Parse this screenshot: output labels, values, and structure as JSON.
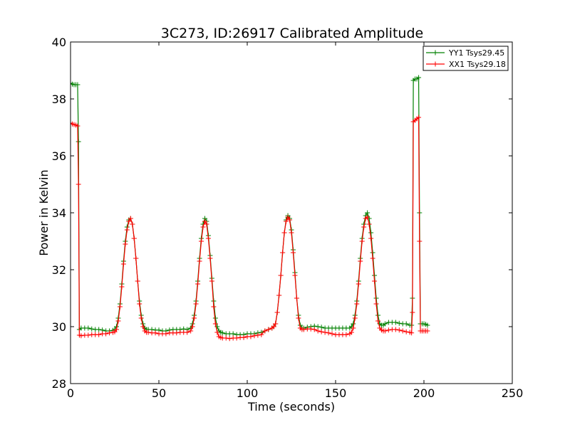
{
  "chart_data": {
    "type": "line",
    "title": "3C273, ID:26917 Calibrated Amplitude",
    "xlabel": "Time (seconds)",
    "ylabel": "Power in Kelvin",
    "xlim": [
      0,
      250
    ],
    "ylim": [
      28,
      40
    ],
    "x_ticks": [
      "0",
      "50",
      "100",
      "150",
      "200",
      "250"
    ],
    "y_ticks": [
      "28",
      "30",
      "32",
      "34",
      "36",
      "38",
      "40"
    ],
    "grid": false,
    "legend_position": "top-right",
    "marker": "+",
    "series": [
      {
        "name": "YY1 Tsys29.45",
        "color": "#008000",
        "x": [
          0,
          1,
          2,
          3,
          4,
          4.5,
          5,
          6,
          8,
          10,
          12,
          14,
          16,
          18,
          20,
          22,
          24,
          25,
          26,
          27,
          28,
          29,
          30,
          31,
          32,
          33,
          34,
          35,
          36,
          37,
          38,
          39,
          40,
          41,
          42,
          43,
          44,
          46,
          48,
          50,
          52,
          54,
          56,
          58,
          60,
          62,
          64,
          66,
          68,
          69,
          70,
          71,
          72,
          73,
          74,
          75,
          76,
          77,
          78,
          79,
          80,
          81,
          82,
          83,
          84,
          85,
          86,
          88,
          90,
          92,
          94,
          96,
          98,
          100,
          102,
          104,
          106,
          108,
          110,
          112,
          114,
          115,
          116,
          117,
          118,
          119,
          120,
          121,
          122,
          123,
          124,
          125,
          126,
          127,
          128,
          129,
          130,
          131,
          132,
          134,
          136,
          138,
          140,
          142,
          144,
          146,
          148,
          150,
          152,
          154,
          156,
          158,
          159,
          160,
          161,
          162,
          163,
          164,
          165,
          166,
          167,
          168,
          169,
          170,
          171,
          172,
          173,
          174,
          175,
          176,
          177,
          178,
          180,
          182,
          184,
          186,
          188,
          190,
          192,
          193,
          193.5,
          194,
          195,
          196,
          197,
          197.5,
          198,
          199,
          200,
          201,
          202
        ],
        "values": [
          38.55,
          38.52,
          38.5,
          38.5,
          38.5,
          36.5,
          29.9,
          29.95,
          29.95,
          29.95,
          29.92,
          29.9,
          29.9,
          29.88,
          29.85,
          29.85,
          29.87,
          29.9,
          30.0,
          30.3,
          30.8,
          31.5,
          32.3,
          33.0,
          33.5,
          33.75,
          33.8,
          33.6,
          33.1,
          32.4,
          31.6,
          30.9,
          30.4,
          30.1,
          29.95,
          29.9,
          29.9,
          29.9,
          29.88,
          29.88,
          29.85,
          29.85,
          29.88,
          29.9,
          29.9,
          29.9,
          29.92,
          29.9,
          29.95,
          30.1,
          30.4,
          30.9,
          31.6,
          32.4,
          33.1,
          33.6,
          33.8,
          33.7,
          33.2,
          32.5,
          31.7,
          30.9,
          30.3,
          30.0,
          29.85,
          29.8,
          29.78,
          29.75,
          29.75,
          29.75,
          29.72,
          29.72,
          29.72,
          29.75,
          29.75,
          29.75,
          29.78,
          29.8,
          29.85,
          29.9,
          29.95,
          30.0,
          30.1,
          30.5,
          31.1,
          31.8,
          32.6,
          33.3,
          33.75,
          33.9,
          33.8,
          33.4,
          32.7,
          31.9,
          31.0,
          30.4,
          30.05,
          29.95,
          29.95,
          29.98,
          30.0,
          30.02,
          30.0,
          29.98,
          29.95,
          29.95,
          29.95,
          29.95,
          29.95,
          29.95,
          29.95,
          29.95,
          30.0,
          30.1,
          30.4,
          30.9,
          31.6,
          32.4,
          33.1,
          33.6,
          33.9,
          34.0,
          33.8,
          33.3,
          32.6,
          31.8,
          31.0,
          30.4,
          30.1,
          30.05,
          30.05,
          30.1,
          30.15,
          30.15,
          30.15,
          30.12,
          30.1,
          30.1,
          30.05,
          30.05,
          31.0,
          38.65,
          38.7,
          38.7,
          38.75,
          34.0,
          30.1,
          30.1,
          30.1,
          30.08,
          30.05
        ]
      },
      {
        "name": "XX1 Tsys29.18",
        "color": "#ff0000",
        "x": [
          0,
          1,
          2,
          3,
          4,
          4.5,
          5,
          6,
          8,
          10,
          12,
          14,
          16,
          18,
          20,
          22,
          24,
          25,
          26,
          27,
          28,
          29,
          30,
          31,
          32,
          33,
          34,
          35,
          36,
          37,
          38,
          39,
          40,
          41,
          42,
          43,
          44,
          46,
          48,
          50,
          52,
          54,
          56,
          58,
          60,
          62,
          64,
          66,
          68,
          69,
          70,
          71,
          72,
          73,
          74,
          75,
          76,
          77,
          78,
          79,
          80,
          81,
          82,
          83,
          84,
          85,
          86,
          88,
          90,
          92,
          94,
          96,
          98,
          100,
          102,
          104,
          106,
          108,
          110,
          112,
          114,
          115,
          116,
          117,
          118,
          119,
          120,
          121,
          122,
          123,
          124,
          125,
          126,
          127,
          128,
          129,
          130,
          131,
          132,
          134,
          136,
          138,
          140,
          142,
          144,
          146,
          148,
          150,
          152,
          154,
          156,
          158,
          159,
          160,
          161,
          162,
          163,
          164,
          165,
          166,
          167,
          168,
          169,
          170,
          171,
          172,
          173,
          174,
          175,
          176,
          177,
          178,
          180,
          182,
          184,
          186,
          188,
          190,
          192,
          193,
          193.5,
          194,
          195,
          196,
          197,
          197.5,
          198,
          199,
          200,
          201,
          202
        ],
        "values": [
          37.15,
          37.12,
          37.1,
          37.08,
          37.05,
          35.0,
          29.7,
          29.68,
          29.7,
          29.7,
          29.72,
          29.72,
          29.72,
          29.75,
          29.75,
          29.78,
          29.8,
          29.82,
          29.9,
          30.2,
          30.7,
          31.4,
          32.2,
          32.9,
          33.4,
          33.7,
          33.8,
          33.6,
          33.1,
          32.4,
          31.6,
          30.8,
          30.3,
          30.0,
          29.85,
          29.8,
          29.8,
          29.78,
          29.78,
          29.75,
          29.75,
          29.75,
          29.78,
          29.78,
          29.78,
          29.8,
          29.8,
          29.8,
          29.85,
          30.0,
          30.3,
          30.8,
          31.5,
          32.3,
          33.0,
          33.5,
          33.7,
          33.6,
          33.1,
          32.4,
          31.6,
          30.7,
          30.1,
          29.8,
          29.65,
          29.62,
          29.6,
          29.6,
          29.58,
          29.6,
          29.6,
          29.62,
          29.62,
          29.65,
          29.65,
          29.68,
          29.7,
          29.72,
          29.85,
          29.9,
          29.95,
          30.0,
          30.1,
          30.5,
          31.1,
          31.8,
          32.6,
          33.3,
          33.7,
          33.85,
          33.75,
          33.3,
          32.6,
          31.8,
          31.0,
          30.3,
          29.95,
          29.9,
          29.9,
          29.92,
          29.92,
          29.9,
          29.85,
          29.82,
          29.8,
          29.78,
          29.75,
          29.72,
          29.72,
          29.72,
          29.72,
          29.75,
          29.8,
          29.95,
          30.3,
          30.8,
          31.5,
          32.3,
          33.0,
          33.5,
          33.8,
          33.85,
          33.6,
          33.1,
          32.4,
          31.6,
          30.8,
          30.2,
          29.95,
          29.88,
          29.85,
          29.85,
          29.88,
          29.9,
          29.9,
          29.88,
          29.85,
          29.82,
          29.8,
          29.78,
          30.5,
          37.2,
          37.25,
          37.3,
          37.35,
          33.0,
          29.85,
          29.85,
          29.85,
          29.85,
          29.85
        ]
      }
    ]
  }
}
